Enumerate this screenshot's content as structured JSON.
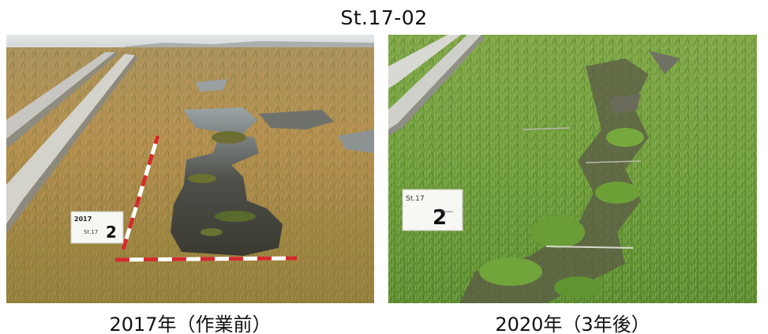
{
  "title": "St.17-02",
  "photos": [
    {
      "caption": "2017年（作業前）",
      "sign": {
        "line1": "2017",
        "line2": "St.17",
        "number": "2"
      }
    },
    {
      "caption": "2020年（3年後）",
      "sign": {
        "line1": "St.17",
        "number": "2"
      }
    }
  ]
}
